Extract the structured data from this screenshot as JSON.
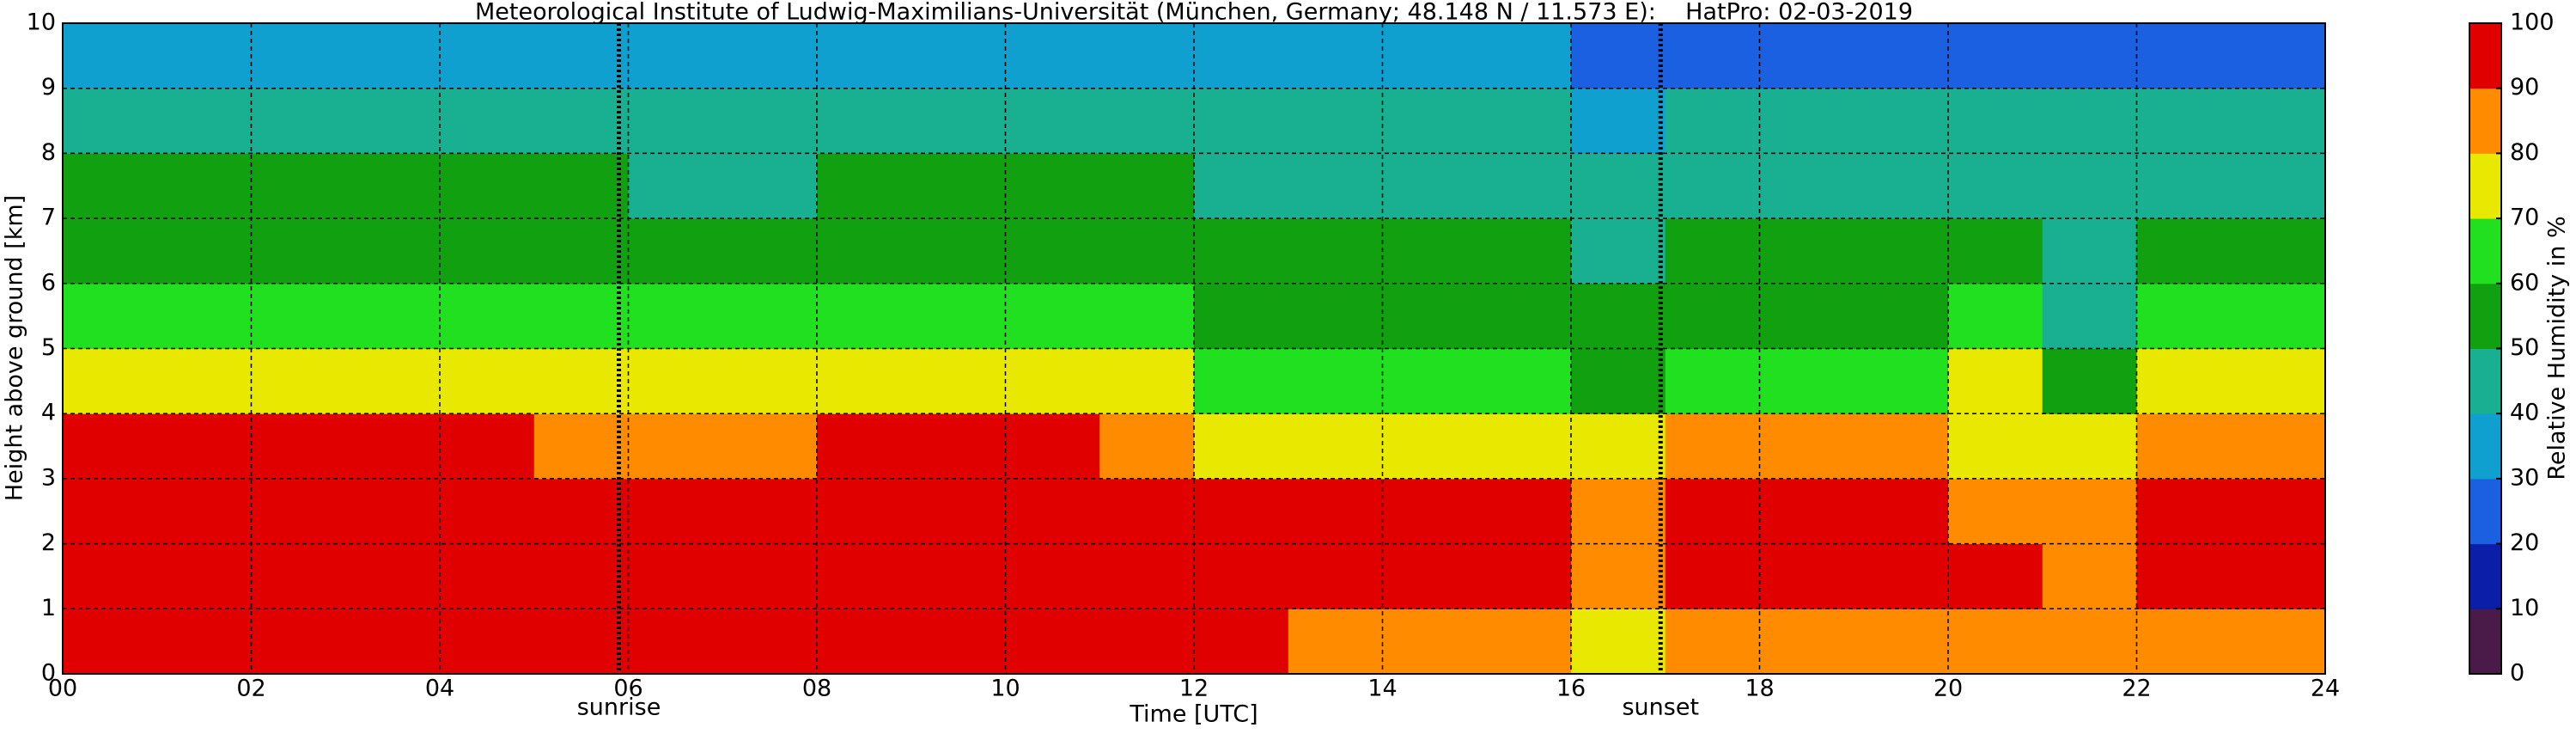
{
  "chart_data": {
    "type": "heatmap",
    "title": "Meteorological Institute of Ludwig-Maximilians-Universität (München, Germany; 48.148 N / 11.573 E):    HatPro: 02-03-2019",
    "x_label": "Time [UTC]",
    "y_label": "Height above ground [km]",
    "colorbar_label": "Relative Humidity in %",
    "x": [
      0,
      1,
      2,
      3,
      4,
      5,
      6,
      7,
      8,
      9,
      10,
      11,
      12,
      13,
      14,
      15,
      16,
      17,
      18,
      19,
      20,
      21,
      22,
      23
    ],
    "y": [
      0,
      1,
      2,
      3,
      4,
      5,
      6,
      7,
      8,
      9
    ],
    "z": [
      [
        96,
        96,
        96,
        96,
        96,
        95,
        93,
        93,
        93,
        93,
        93,
        93,
        92,
        88,
        85,
        82,
        72,
        88,
        88,
        88,
        88,
        85,
        88,
        88
      ],
      [
        97,
        97,
        97,
        97,
        97,
        96,
        93,
        93,
        96,
        96,
        96,
        94,
        93,
        93,
        93,
        92,
        85,
        92,
        92,
        92,
        92,
        88,
        94,
        94
      ],
      [
        92,
        92,
        92,
        92,
        92,
        92,
        91,
        91,
        92,
        92,
        92,
        92,
        91,
        91,
        91,
        90,
        82,
        90,
        90,
        90,
        85,
        85,
        91,
        91
      ],
      [
        90,
        90,
        90,
        90,
        90,
        88,
        84,
        84,
        90,
        90,
        90,
        88,
        78,
        78,
        78,
        78,
        70,
        80,
        80,
        80,
        70,
        70,
        82,
        82
      ],
      [
        78,
        78,
        78,
        78,
        78,
        76,
        72,
        72,
        78,
        78,
        78,
        76,
        68,
        68,
        68,
        68,
        58,
        68,
        68,
        68,
        70,
        55,
        72,
        72
      ],
      [
        68,
        68,
        68,
        68,
        68,
        66,
        60,
        60,
        68,
        68,
        68,
        66,
        58,
        58,
        58,
        58,
        50,
        58,
        58,
        58,
        60,
        48,
        62,
        62
      ],
      [
        57,
        57,
        57,
        57,
        57,
        55,
        52,
        52,
        55,
        55,
        55,
        55,
        52,
        52,
        52,
        52,
        45,
        52,
        52,
        52,
        52,
        45,
        52,
        52
      ],
      [
        52,
        52,
        52,
        52,
        52,
        50,
        48,
        48,
        52,
        52,
        52,
        52,
        48,
        48,
        48,
        48,
        42,
        48,
        48,
        48,
        48,
        42,
        48,
        48
      ],
      [
        45,
        45,
        45,
        45,
        45,
        44,
        42,
        42,
        45,
        45,
        45,
        45,
        42,
        42,
        42,
        42,
        38,
        42,
        42,
        42,
        42,
        40,
        42,
        42
      ],
      [
        35,
        35,
        35,
        35,
        35,
        34,
        33,
        33,
        34,
        34,
        34,
        34,
        30,
        30,
        30,
        30,
        25,
        28,
        28,
        28,
        25,
        25,
        26,
        26
      ]
    ],
    "colors": [
      "#4a1a48",
      "#0a1ea8",
      "#1a60e0",
      "#10a0d0",
      "#18b090",
      "#10a010",
      "#20e020",
      "#e8e800",
      "#ff8c00",
      "#e00000"
    ],
    "xlim": [
      0,
      24
    ],
    "xticks": [
      {
        "value": 0,
        "label": "00"
      },
      {
        "value": 2,
        "label": "02"
      },
      {
        "value": 4,
        "label": "04"
      },
      {
        "value": 6,
        "label": "06"
      },
      {
        "value": 8,
        "label": "08"
      },
      {
        "value": 10,
        "label": "10"
      },
      {
        "value": 12,
        "label": "12"
      },
      {
        "value": 14,
        "label": "14"
      },
      {
        "value": 16,
        "label": "16"
      },
      {
        "value": 18,
        "label": "18"
      },
      {
        "value": 20,
        "label": "20"
      },
      {
        "value": 22,
        "label": "22"
      },
      {
        "value": 24,
        "label": "24"
      }
    ],
    "ylim": [
      0,
      10
    ],
    "yticks": [
      0,
      1,
      2,
      3,
      4,
      5,
      6,
      7,
      8,
      9,
      10
    ],
    "zlim": [
      0,
      100
    ],
    "zticks": [
      0,
      10,
      20,
      30,
      40,
      50,
      60,
      70,
      80,
      90,
      100
    ],
    "grid": true,
    "annotations": [
      {
        "text": "sunrise",
        "x": 5.9
      },
      {
        "text": "sunset",
        "x": 16.95
      }
    ]
  }
}
